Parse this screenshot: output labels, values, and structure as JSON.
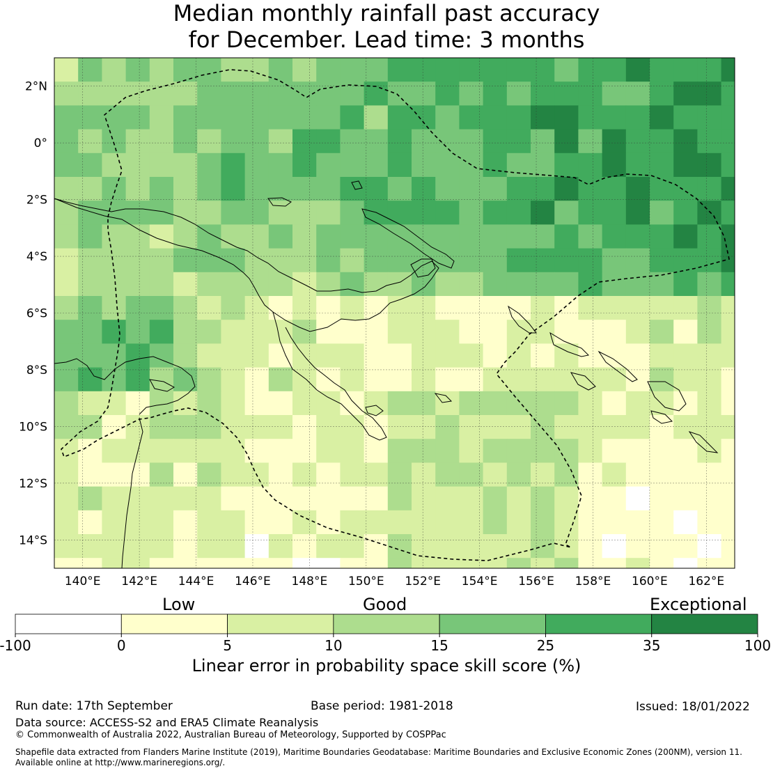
{
  "title_line1": "Median monthly rainfall past accuracy",
  "title_line2": "for December. Lead time: 3 months",
  "map": {
    "lon_ticks": [
      "140°E",
      "142°E",
      "144°E",
      "146°E",
      "148°E",
      "150°E",
      "152°E",
      "154°E",
      "156°E",
      "158°E",
      "160°E",
      "162°E"
    ],
    "lat_ticks": [
      "2°N",
      "0°",
      "2°S",
      "4°S",
      "6°S",
      "8°S",
      "10°S",
      "12°S",
      "14°S"
    ]
  },
  "colorbar": {
    "categories": {
      "low": "Low",
      "good": "Good",
      "exceptional": "Exceptional"
    },
    "ticks": [
      "-100",
      "0",
      "5",
      "10",
      "15",
      "25",
      "35",
      "100"
    ],
    "colors": [
      "#ffffff",
      "#ffffcc",
      "#d9f0a3",
      "#addd8e",
      "#78c679",
      "#41ab5d",
      "#238443"
    ],
    "label": "Linear error in probability space skill score (%)"
  },
  "footer": {
    "run_date": "Run date: 17th September",
    "base_period": "Base period: 1981-2018",
    "issued": "Issued: 18/01/2022",
    "data_source": "Data source: ACCESS-S2 and ERA5 Climate Reanalysis",
    "copyright": "© Commonwealth of Australia 2022, Australian Bureau of Meteorology, Supported by COSPPac",
    "shapefile_line1": "Shapefile data extracted from Flanders Marine Institute (2019), Maritime Boundaries Geodatabase: Maritime Boundaries and Exclusive Economic Zones (200NM), version 11.",
    "shapefile_line2": "Available online at http://www.marineregions.org/."
  }
}
